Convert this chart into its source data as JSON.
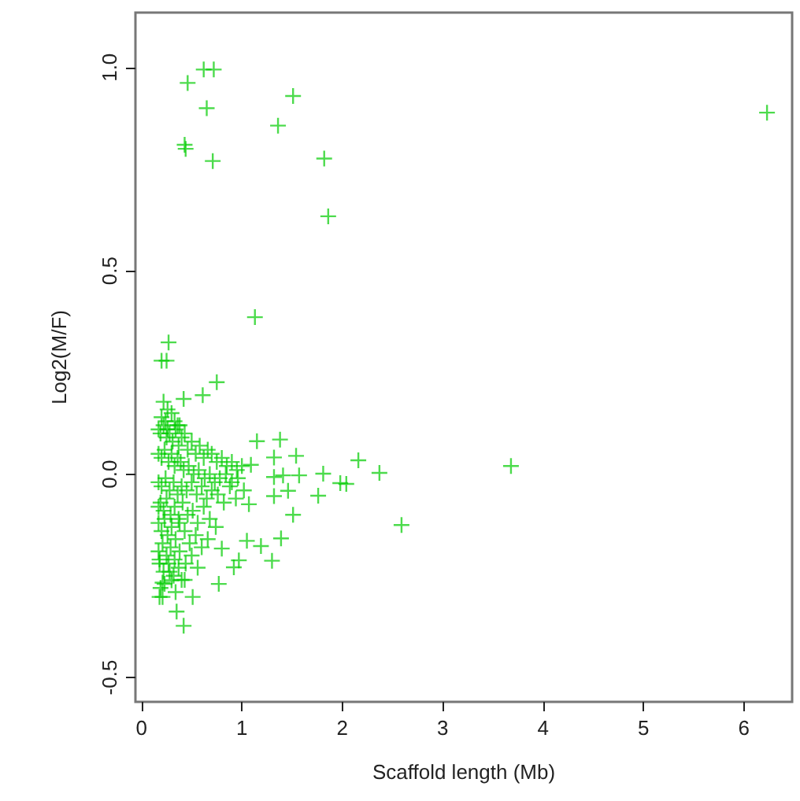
{
  "chart_data": {
    "type": "scatter",
    "xlabel": "Scaffold length (Mb)",
    "ylabel": "Log2(M/F)",
    "xlim": [
      -0.06,
      6.48
    ],
    "ylim": [
      -0.56,
      1.135
    ],
    "xticks": [
      0,
      1,
      2,
      3,
      4,
      5,
      6
    ],
    "yticks": [
      {
        "value": -0.5,
        "label": "-0.5"
      },
      {
        "value": 0,
        "label": "0.0"
      },
      {
        "value": 0.5,
        "label": "0.5"
      },
      {
        "value": 1,
        "label": "1.0"
      }
    ],
    "grid": false,
    "marker": "cross",
    "series": [
      {
        "color": "#00cc00",
        "x": [
          0.46,
          0.62,
          0.72,
          0.65,
          1.51,
          1.36,
          0.43,
          0.44,
          0.71,
          1.82,
          1.86,
          6.23,
          1.13,
          0.27,
          0.2,
          0.25,
          0.75,
          0.61,
          0.42,
          0.22,
          0.26,
          1.38,
          1.54,
          2.16,
          2.37,
          1.81,
          1.98,
          2.04,
          1.76,
          2.59,
          3.68,
          1.32,
          1.32,
          1.15,
          1.09,
          1.57,
          1.41,
          1.46,
          1.32,
          1.51,
          1.39,
          1.3,
          1.19,
          1.07,
          1.05,
          0.97,
          0.92,
          0.8,
          0.77,
          0.51,
          0.42,
          0.35,
          0.3,
          0.18,
          0.21,
          0.21,
          0.17,
          0.19,
          0.22,
          0.25,
          0.28,
          0.31,
          0.34,
          0.37,
          0.4,
          0.43,
          0.46,
          0.5,
          0.54,
          0.58,
          0.62,
          0.66,
          0.7,
          0.75,
          0.8,
          0.85,
          0.9,
          0.95,
          1.0,
          0.17,
          0.2,
          0.23,
          0.27,
          0.3,
          0.33,
          0.36,
          0.39,
          0.42,
          0.47,
          0.52,
          0.57,
          0.63,
          0.68,
          0.73,
          0.78,
          0.84,
          0.9,
          0.96,
          0.17,
          0.2,
          0.24,
          0.28,
          0.32,
          0.36,
          0.4,
          0.45,
          0.5,
          0.55,
          0.6,
          0.65,
          0.7,
          0.76,
          0.82,
          0.88,
          0.94,
          1.02,
          0.17,
          0.19,
          0.22,
          0.25,
          0.29,
          0.33,
          0.37,
          0.41,
          0.46,
          0.51,
          0.56,
          0.62,
          0.68,
          0.74,
          0.17,
          0.2,
          0.23,
          0.26,
          0.3,
          0.34,
          0.38,
          0.43,
          0.48,
          0.54,
          0.6,
          0.66,
          0.17,
          0.21,
          0.25,
          0.29,
          0.33,
          0.38,
          0.44,
          0.5,
          0.56,
          0.18,
          0.22,
          0.27,
          0.32,
          0.37,
          0.43,
          0.18,
          0.23,
          0.28,
          0.34,
          0.4,
          0.19,
          0.24,
          0.3,
          0.36,
          0.2,
          0.26,
          0.33,
          0.38
        ],
        "values": [
          0.962,
          0.995,
          0.995,
          0.9,
          0.93,
          0.857,
          0.81,
          0.8,
          0.77,
          0.776,
          0.634,
          0.889,
          0.386,
          0.324,
          0.279,
          0.279,
          0.226,
          0.194,
          0.185,
          0.178,
          0.159,
          0.085,
          0.045,
          0.034,
          0.003,
          0.001,
          -0.022,
          -0.024,
          -0.053,
          -0.125,
          0.02,
          0.041,
          -0.007,
          0.081,
          0.023,
          -0.003,
          -0.003,
          -0.041,
          -0.054,
          -0.1,
          -0.158,
          -0.213,
          -0.177,
          -0.074,
          -0.164,
          -0.212,
          -0.229,
          -0.183,
          -0.27,
          -0.302,
          -0.373,
          -0.338,
          -0.261,
          -0.302,
          -0.302,
          -0.267,
          0.11,
          0.1,
          0.12,
          0.09,
          0.1,
          0.08,
          0.11,
          0.07,
          0.09,
          0.1,
          0.06,
          0.08,
          0.05,
          0.07,
          0.04,
          0.06,
          0.05,
          0.03,
          0.04,
          0.02,
          0.03,
          0.01,
          0.02,
          0.05,
          0.04,
          0.06,
          0.03,
          0.05,
          0.02,
          0.04,
          0.03,
          0.01,
          0.02,
          0.0,
          0.01,
          -0.01,
          0.0,
          -0.02,
          -0.01,
          0.0,
          -0.02,
          -0.01,
          -0.02,
          -0.03,
          -0.01,
          -0.04,
          -0.02,
          -0.05,
          -0.03,
          -0.04,
          -0.02,
          -0.05,
          -0.03,
          -0.06,
          -0.04,
          -0.05,
          -0.07,
          -0.03,
          -0.06,
          -0.04,
          -0.08,
          -0.07,
          -0.09,
          -0.06,
          -0.1,
          -0.08,
          -0.11,
          -0.07,
          -0.1,
          -0.09,
          -0.12,
          -0.08,
          -0.11,
          -0.13,
          -0.12,
          -0.14,
          -0.11,
          -0.15,
          -0.13,
          -0.16,
          -0.12,
          -0.14,
          -0.17,
          -0.15,
          -0.18,
          -0.16,
          -0.19,
          -0.17,
          -0.2,
          -0.18,
          -0.21,
          -0.19,
          -0.22,
          -0.2,
          -0.23,
          -0.21,
          -0.24,
          -0.22,
          -0.25,
          -0.23,
          -0.26,
          -0.22,
          -0.27,
          -0.24,
          -0.29,
          -0.26,
          -0.28,
          0.13,
          0.15,
          0.12,
          0.14,
          0.11,
          0.13,
          0.12
        ]
      }
    ]
  }
}
